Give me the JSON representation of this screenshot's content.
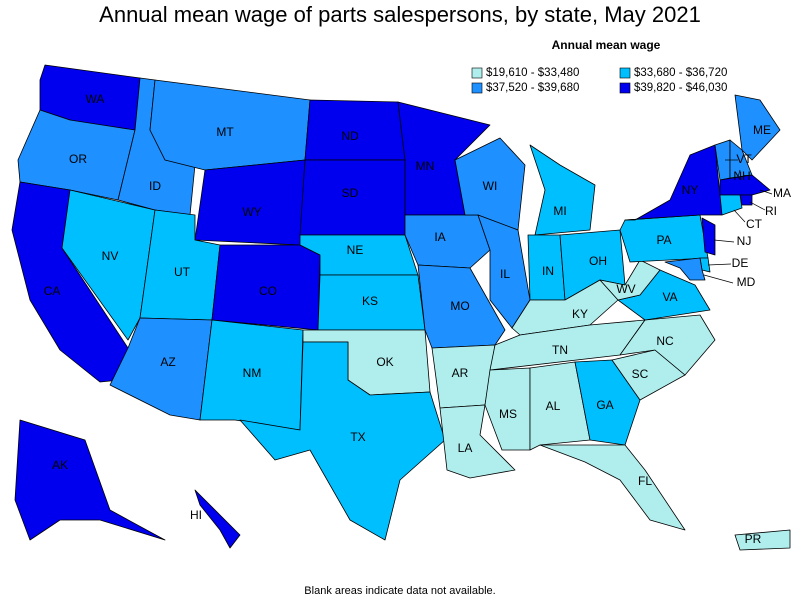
{
  "title": "Annual mean wage of parts salespersons, by state, May 2021",
  "legend": {
    "title": "Annual mean wage",
    "items": [
      {
        "label": "$19,610 - $33,480",
        "color": "#b0eeee"
      },
      {
        "label": "$33,680 - $36,720",
        "color": "#00bfff"
      },
      {
        "label": "$37,520 - $39,680",
        "color": "#1e90ff"
      },
      {
        "label": "$39,820 - $46,030",
        "color": "#0000ee"
      }
    ]
  },
  "states": [
    {
      "label": "WA",
      "class": 3
    },
    {
      "label": "OR",
      "class": 2
    },
    {
      "label": "CA",
      "class": 3
    },
    {
      "label": "NV",
      "class": 1
    },
    {
      "label": "ID",
      "class": 2
    },
    {
      "label": "MT",
      "class": 2
    },
    {
      "label": "WY",
      "class": 3
    },
    {
      "label": "UT",
      "class": 1
    },
    {
      "label": "CO",
      "class": 3
    },
    {
      "label": "AZ",
      "class": 2
    },
    {
      "label": "NM",
      "class": 1
    },
    {
      "label": "ND",
      "class": 3
    },
    {
      "label": "SD",
      "class": 3
    },
    {
      "label": "NE",
      "class": 1
    },
    {
      "label": "KS",
      "class": 1
    },
    {
      "label": "OK",
      "class": 0
    },
    {
      "label": "TX",
      "class": 1
    },
    {
      "label": "MN",
      "class": 3
    },
    {
      "label": "IA",
      "class": 2
    },
    {
      "label": "MO",
      "class": 2
    },
    {
      "label": "AR",
      "class": 0
    },
    {
      "label": "LA",
      "class": 0
    },
    {
      "label": "WI",
      "class": 2
    },
    {
      "label": "IL",
      "class": 2
    },
    {
      "label": "MI",
      "class": 1
    },
    {
      "label": "IN",
      "class": 1
    },
    {
      "label": "OH",
      "class": 1
    },
    {
      "label": "KY",
      "class": 0
    },
    {
      "label": "TN",
      "class": 0
    },
    {
      "label": "MS",
      "class": 0
    },
    {
      "label": "AL",
      "class": 0
    },
    {
      "label": "GA",
      "class": 1
    },
    {
      "label": "FL",
      "class": 0
    },
    {
      "label": "SC",
      "class": 0
    },
    {
      "label": "NC",
      "class": 0
    },
    {
      "label": "VA",
      "class": 1
    },
    {
      "label": "WV",
      "class": 0
    },
    {
      "label": "PA",
      "class": 1
    },
    {
      "label": "NY",
      "class": 3
    },
    {
      "label": "ME",
      "class": 2
    },
    {
      "label": "VT",
      "class": 2
    },
    {
      "label": "NH",
      "class": 2
    },
    {
      "label": "MA",
      "class": 3
    },
    {
      "label": "RI",
      "class": 3
    },
    {
      "label": "CT",
      "class": 1
    },
    {
      "label": "NJ",
      "class": 3
    },
    {
      "label": "DE",
      "class": 1
    },
    {
      "label": "MD",
      "class": 2
    },
    {
      "label": "AK",
      "class": 3
    },
    {
      "label": "HI",
      "class": 3
    },
    {
      "label": "PR",
      "class": 0
    }
  ],
  "footnote": "Blank areas indicate data not available."
}
